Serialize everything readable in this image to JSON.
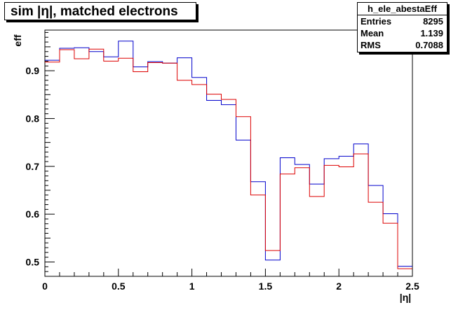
{
  "title": "sim |η|, matched electrons",
  "stats": {
    "name": "h_ele_abestaEff",
    "rows": [
      {
        "label": "Entries",
        "value": "8295"
      },
      {
        "label": "Mean",
        "value": "1.139"
      },
      {
        "label": "RMS",
        "value": "0.7088"
      }
    ]
  },
  "chart_data": {
    "type": "line",
    "title": "sim |η|, matched electrons",
    "xlabel": "|η|",
    "ylabel": "eff",
    "xlim": [
      0,
      2.5
    ],
    "ylim": [
      0.47,
      0.985
    ],
    "xticks": [
      "0",
      "0.5",
      "1",
      "1.5",
      "2",
      "2.5"
    ],
    "yticks": [
      "0.5",
      "0.6",
      "0.7",
      "0.8",
      "0.9"
    ],
    "bin_edges": [
      0,
      0.1,
      0.2,
      0.3,
      0.4,
      0.5,
      0.6,
      0.7,
      0.8,
      0.9,
      1.0,
      1.1,
      1.2,
      1.3,
      1.4,
      1.5,
      1.6,
      1.7,
      1.8,
      1.9,
      2.0,
      2.1,
      2.2,
      2.3,
      2.4,
      2.5
    ],
    "grid": false,
    "series": [
      {
        "color": "#0000cc",
        "values": [
          0.922,
          0.947,
          0.948,
          0.94,
          0.929,
          0.962,
          0.908,
          0.919,
          0.916,
          0.927,
          0.886,
          0.838,
          0.829,
          0.755,
          0.668,
          0.504,
          0.718,
          0.704,
          0.663,
          0.716,
          0.721,
          0.747,
          0.66,
          0.601,
          0.491
        ]
      },
      {
        "color": "#dd0000",
        "values": [
          0.918,
          0.944,
          0.925,
          0.945,
          0.92,
          0.926,
          0.898,
          0.917,
          0.916,
          0.88,
          0.871,
          0.851,
          0.84,
          0.804,
          0.64,
          0.524,
          0.684,
          0.697,
          0.637,
          0.702,
          0.699,
          0.726,
          0.625,
          0.581,
          0.486
        ]
      }
    ]
  }
}
